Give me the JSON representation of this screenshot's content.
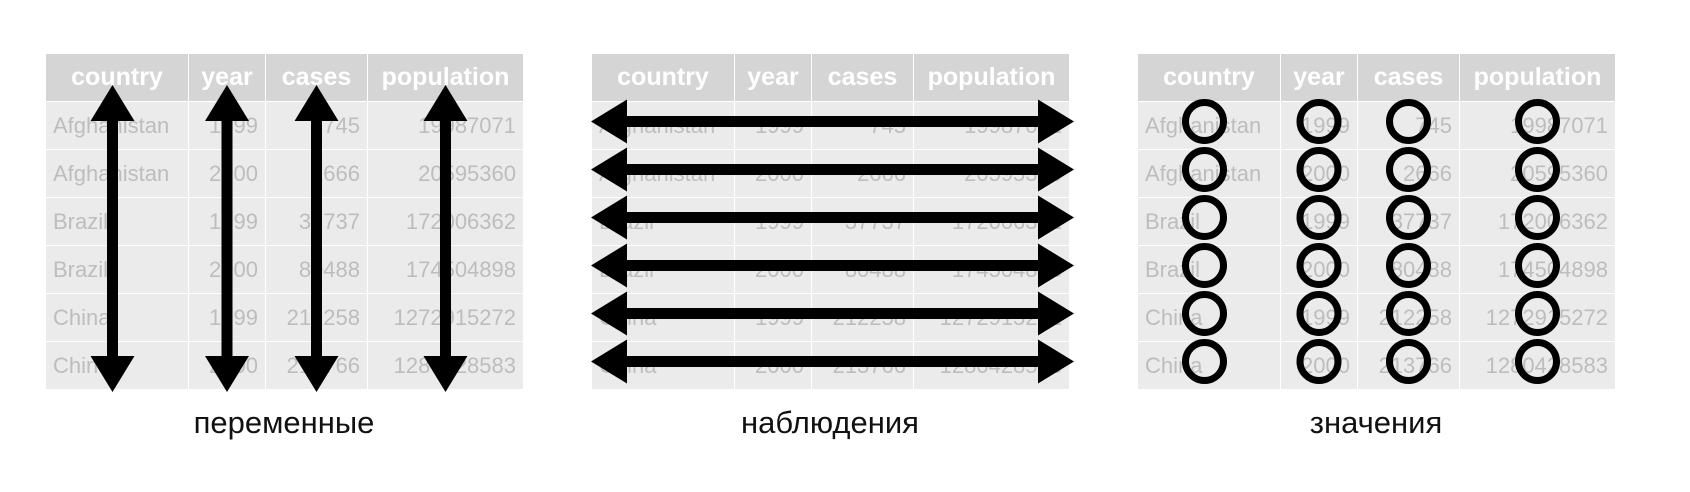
{
  "table": {
    "headers": [
      "country",
      "year",
      "cases",
      "population"
    ],
    "rows": [
      [
        "Afghanistan",
        "1999",
        "745",
        "19987071"
      ],
      [
        "Afghanistan",
        "2000",
        "2666",
        "20595360"
      ],
      [
        "Brazil",
        "1999",
        "37737",
        "172006362"
      ],
      [
        "Brazil",
        "2000",
        "80488",
        "174504898"
      ],
      [
        "China",
        "1999",
        "212258",
        "1272915272"
      ],
      [
        "China",
        "2000",
        "213766",
        "1280428583"
      ]
    ]
  },
  "panels": [
    {
      "caption": "переменные",
      "marker": "vertical-arrow-per-column"
    },
    {
      "caption": "наблюдения",
      "marker": "horizontal-arrow-per-row"
    },
    {
      "caption": "значения",
      "marker": "circle-per-cell"
    }
  ],
  "colors": {
    "header_bg": "#d5d5d5",
    "cell_bg": "#ebebeb",
    "cell_text": "#bdbdbd",
    "marker": "#000000"
  }
}
